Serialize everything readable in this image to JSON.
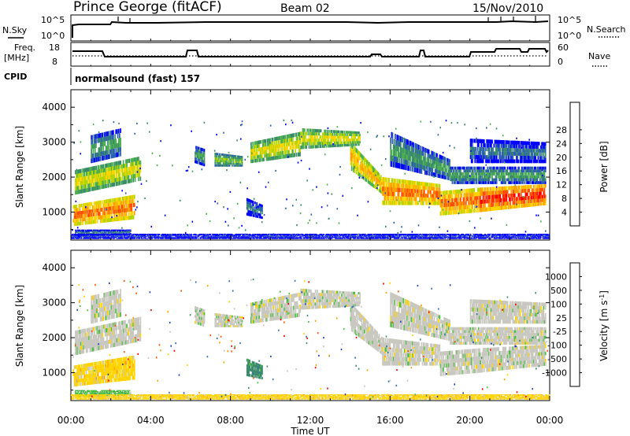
{
  "header": {
    "station": "Prince George (fitACF)",
    "beam": "Beam 02",
    "date": "15/Nov/2010"
  },
  "strip_labels": {
    "nsky": "N.Sky",
    "nsky_ticks": [
      "10^5",
      "10^0"
    ],
    "nsearch": "N.Search",
    "nsearch_ticks": [
      "10^5",
      "10^0"
    ],
    "freq": "Freq.",
    "freq_unit": "[MHz]",
    "freq_ticks": [
      "18",
      "8"
    ],
    "nave": "Nave",
    "nave_ticks": [
      "60",
      "0"
    ],
    "cpid": "CPID",
    "cpid_value": "normalsound (fast) 157"
  },
  "chart_data": [
    {
      "type": "heatmap",
      "name": "power",
      "ylabel": "Slant Range [km]",
      "yticks": [
        1000,
        2000,
        3000,
        4000
      ],
      "ylim": [
        200,
        4500
      ],
      "xlim": [
        0,
        24
      ],
      "colorbar": {
        "label": "Power [dB]",
        "ticks": [
          "4",
          "8",
          "12",
          "16",
          "20",
          "24",
          "28"
        ],
        "colors": [
          "#0000ff",
          "#2c5fb4",
          "#3a8a6c",
          "#4caf50",
          "#b6d400",
          "#ffd400",
          "#ff9f00",
          "#ff5000",
          "#ff0000"
        ]
      }
    },
    {
      "type": "heatmap",
      "name": "velocity",
      "ylabel": "Slant Range [km]",
      "yticks": [
        1000,
        2000,
        3000,
        4000
      ],
      "ylim": [
        200,
        4500
      ],
      "xlim": [
        0,
        24
      ],
      "colorbar": {
        "label": "Velocity [m s",
        "label_sup": "-1",
        "label_close": "]",
        "ticks": [
          "1000",
          "500",
          "100",
          "25",
          "-25",
          "-100",
          "-500",
          "-1000"
        ],
        "colors": [
          "#2040c0",
          "#3270b0",
          "#3a8a6c",
          "#4cc040",
          "#c8c8c0",
          "#ffd400",
          "#ff9f00",
          "#ff5000",
          "#ff0000"
        ]
      }
    }
  ],
  "time_axis": {
    "ticks": [
      "00:00",
      "04:00",
      "08:00",
      "12:00",
      "16:00",
      "20:00",
      "00:00"
    ],
    "label": "Time UT"
  }
}
